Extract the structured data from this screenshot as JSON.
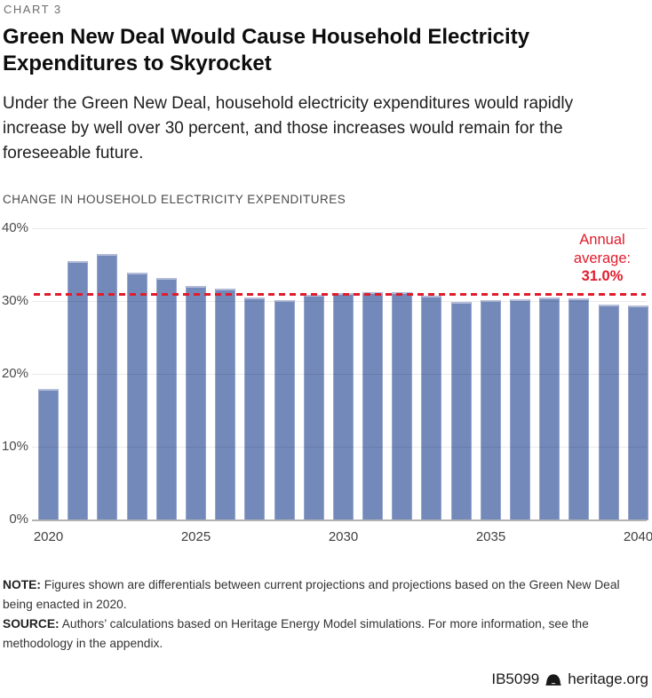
{
  "kicker": "CHART 3",
  "title": "Green New Deal Would Cause Household Electricity Expenditures to Skyrocket",
  "subtitle": "Under the Green New Deal, household electricity expenditures would rapidly increase by well over 30 percent, and those increases would remain for the foreseeable future.",
  "chart_data": {
    "type": "bar",
    "title": "CHANGE IN HOUSEHOLD ELECTRICITY EXPENDITURES",
    "categories": [
      2020,
      2021,
      2022,
      2023,
      2024,
      2025,
      2026,
      2027,
      2028,
      2029,
      2030,
      2031,
      2032,
      2033,
      2034,
      2035,
      2036,
      2037,
      2038,
      2039,
      2040
    ],
    "values": [
      18.1,
      35.6,
      36.6,
      34.0,
      33.3,
      32.2,
      31.8,
      30.6,
      30.3,
      31.0,
      31.2,
      31.4,
      31.4,
      30.8,
      30.0,
      30.2,
      30.4,
      30.6,
      30.5,
      29.7,
      29.5
    ],
    "ylabel": "",
    "xlabel": "",
    "ylim": [
      0,
      40
    ],
    "yticks": [
      0,
      10,
      20,
      30,
      40
    ],
    "ytick_suffix": "%",
    "xticks": [
      2020,
      2025,
      2030,
      2035,
      2040
    ],
    "grid": true,
    "legend": "none",
    "bar_color": "#7389ba",
    "annotation": {
      "lines": [
        "Annual",
        "average:"
      ],
      "value_label": "31.0%",
      "annual_average": 31.0,
      "color": "#e11b2c",
      "style": "dashed-horizontal-line"
    }
  },
  "note": {
    "label": "NOTE:",
    "text": "Figures shown are differentials between current projections and projections based on the Green New Deal being enacted in 2020."
  },
  "source": {
    "label": "SOURCE:",
    "text": "Authors’ calculations based on Heritage Energy Model simulations. For more information, see the methodology in the appendix."
  },
  "footer": {
    "doc_id": "IB5099",
    "site": "heritage.org",
    "logo": "liberty-bell-icon"
  }
}
